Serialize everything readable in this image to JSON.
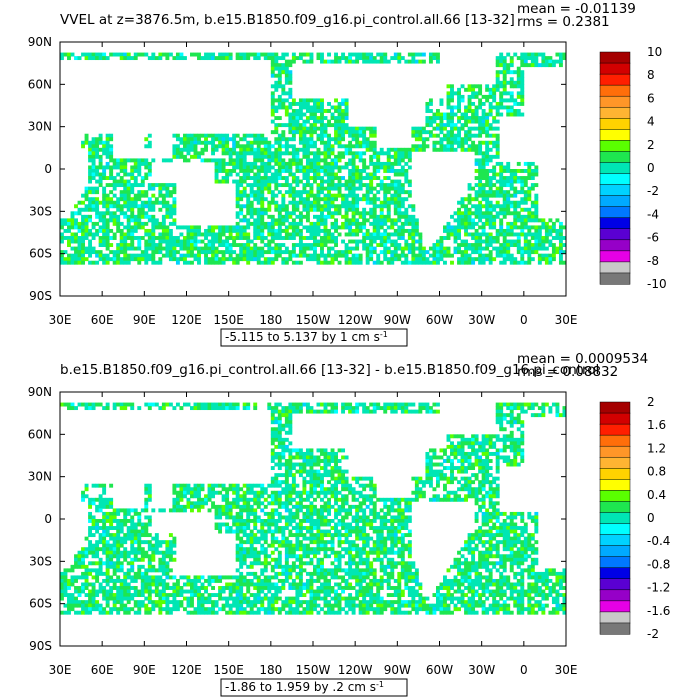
{
  "chart_data": [
    {
      "type": "heatmap",
      "title": "VVEL at z=3876.5m, b.e15.B1850.f09_g16.pi_control.all.66 [13-32]",
      "stats": {
        "mean": "mean = -0.01139",
        "rms": "rms = 0.2381"
      },
      "range_label": "-5.115 to 5.137 by 1 cm s",
      "range_unit_sup": "-1",
      "x_ticks": [
        "30E",
        "60E",
        "90E",
        "120E",
        "150E",
        "180",
        "150W",
        "120W",
        "90W",
        "60W",
        "30W",
        "0",
        "30E"
      ],
      "y_ticks": [
        "90N",
        "60N",
        "30N",
        "0",
        "30S",
        "60S",
        "90S"
      ],
      "colorbar_labels": [
        "10",
        "8",
        "6",
        "4",
        "2",
        "0",
        "-2",
        "-4",
        "-6",
        "-8",
        "-10"
      ],
      "colors": [
        "#a50000",
        "#d20000",
        "#ff1e00",
        "#ff6e0a",
        "#ff9628",
        "#ffb432",
        "#ffd200",
        "#ffff00",
        "#5aff00",
        "#1ee650",
        "#00e6b4",
        "#00ffff",
        "#00d2ff",
        "#00aaff",
        "#0078ff",
        "#0000e6",
        "#5a00d2",
        "#9600c8",
        "#e600e6",
        "#c8c8c8",
        "#787878"
      ]
    },
    {
      "type": "heatmap",
      "title": "b.e15.B1850.f09_g16.pi_control.all.66 [13-32] - b.e15.B1850.f09_g16.pi_control",
      "stats": {
        "mean": "mean = 0.0009534",
        "rms": "rms = 0.08832"
      },
      "range_label": "-1.86 to 1.959 by .2 cm s",
      "range_unit_sup": "-1",
      "x_ticks": [
        "30E",
        "60E",
        "90E",
        "120E",
        "150E",
        "180",
        "150W",
        "120W",
        "90W",
        "60W",
        "30W",
        "0",
        "30E"
      ],
      "y_ticks": [
        "90N",
        "60N",
        "30N",
        "0",
        "30S",
        "60S",
        "90S"
      ],
      "colorbar_labels": [
        "2",
        "1.6",
        "1.2",
        "0.8",
        "0.4",
        "0",
        "-0.4",
        "-0.8",
        "-1.2",
        "-1.6",
        "-2"
      ],
      "colors": [
        "#a50000",
        "#d20000",
        "#ff1e00",
        "#ff6e0a",
        "#ff9628",
        "#ffb432",
        "#ffd200",
        "#ffff00",
        "#5aff00",
        "#1ee650",
        "#00e6b4",
        "#00ffff",
        "#00d2ff",
        "#00aaff",
        "#0078ff",
        "#0000e6",
        "#5a00d2",
        "#9600c8",
        "#e600e6",
        "#c8c8c8",
        "#787878"
      ]
    }
  ]
}
